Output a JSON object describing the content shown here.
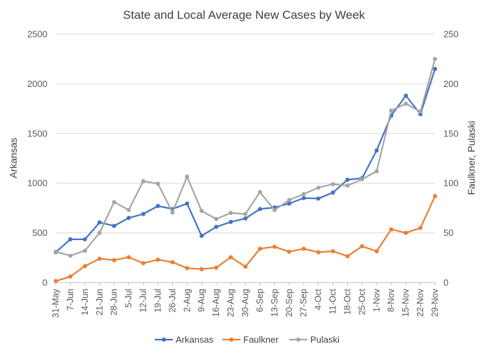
{
  "chart_data": {
    "type": "line",
    "title": "State and Local Average New Cases by Week",
    "ylabel": "Arkansas",
    "y2label": "Faulkner, Pulaski",
    "ylim": [
      0,
      2500
    ],
    "y2lim": [
      0,
      250
    ],
    "yticks": [
      "0",
      "500",
      "1000",
      "1500",
      "2000",
      "2500"
    ],
    "y2ticks": [
      "0",
      "50",
      "100",
      "150",
      "200",
      "250"
    ],
    "grid": true,
    "legend": "bottom",
    "categories": [
      "31-May",
      "7-Jun",
      "14-Jun",
      "21-Jun",
      "28-Jun",
      "5-Jul",
      "12-Jul",
      "19-Jul",
      "26-Jul",
      "2-Aug",
      "9-Aug",
      "16-Aug",
      "23-Aug",
      "30-Aug",
      "6-Sep",
      "13-Sep",
      "20-Sep",
      "27-Sep",
      "4-Oct",
      "11-Oct",
      "18-Oct",
      "25-Oct",
      "1-Nov",
      "8-Nov",
      "15-Nov",
      "22-Nov",
      "29-Nov"
    ],
    "series": [
      {
        "name": "Arkansas",
        "axis": "left",
        "color": "#4472C4",
        "values": [
          305,
          435,
          435,
          605,
          570,
          650,
          690,
          770,
          740,
          795,
          470,
          560,
          610,
          645,
          740,
          755,
          795,
          850,
          845,
          905,
          1035,
          1050,
          1330,
          1680,
          1880,
          1695,
          2150
        ]
      },
      {
        "name": "Faulkner",
        "axis": "right",
        "color": "#ED7D31",
        "values": [
          1.5,
          6,
          16.5,
          24,
          22.5,
          25.5,
          19.5,
          23,
          20.5,
          14.5,
          13.5,
          15,
          25.5,
          16,
          34,
          36,
          31,
          34,
          30.5,
          31.5,
          26.5,
          36.5,
          31.5,
          53.5,
          50,
          55,
          87
        ]
      },
      {
        "name": "Pulaski",
        "axis": "right",
        "color": "#A5A5A5",
        "values": [
          31,
          27,
          32,
          50,
          81,
          73,
          102,
          99.5,
          70.5,
          106.5,
          72,
          64,
          70,
          69,
          91,
          73,
          83,
          89,
          95.5,
          99,
          97.5,
          104,
          112,
          173,
          180,
          172,
          225
        ]
      }
    ]
  }
}
